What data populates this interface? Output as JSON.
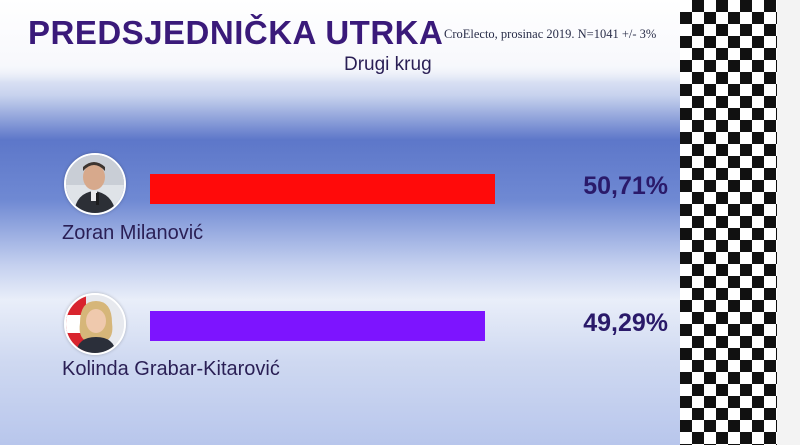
{
  "header": {
    "title": "PREDSJEDNIČKA UTRKA",
    "subtitle": "Drugi krug",
    "source": "CroElecto, prosinac 2019. N=1041 +/- 3%"
  },
  "candidates": [
    {
      "name": "Zoran Milanović",
      "percent_label": "50,71%",
      "avatar_icon": "man-portrait-icon",
      "color": "#ff0a0a"
    },
    {
      "name": "Kolinda Grabar-Kitarović",
      "percent_label": "49,29%",
      "avatar_icon": "woman-portrait-icon",
      "color": "#7d14ff"
    }
  ],
  "chart_data": {
    "type": "bar",
    "title": "PREDSJEDNIČKA UTRKA",
    "subtitle": "Drugi krug",
    "categories": [
      "Zoran Milanović",
      "Kolinda Grabar-Kitarović"
    ],
    "values": [
      50.71,
      49.29
    ],
    "colors": [
      "#ff0a0a",
      "#7d14ff"
    ],
    "orientation": "horizontal",
    "ylim": [
      0,
      100
    ]
  }
}
